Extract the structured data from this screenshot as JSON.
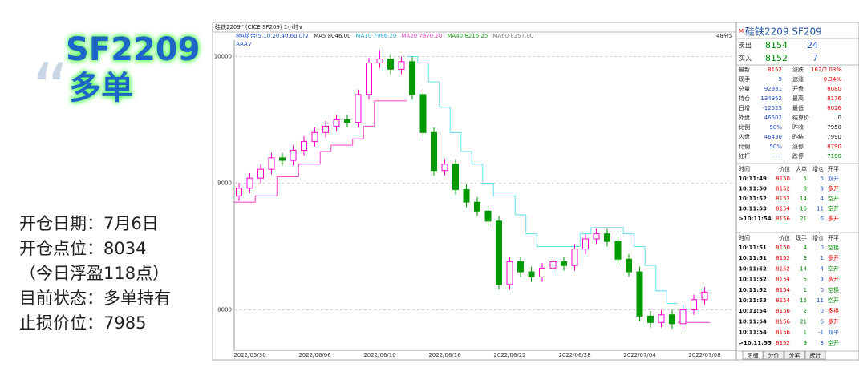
{
  "overlay": {
    "code": "SF2209",
    "direction": "多单",
    "lines": [
      "开仓日期：7月6日",
      "开仓点位：8034",
      "（今日浮盈118点）",
      "目前状态：多单持有",
      "止损价位：7985"
    ]
  },
  "chart_data": {
    "type": "candlestick",
    "title_bar": "硅铁2209ᴹ (CICE SF209)  1小时∨",
    "indicators": [
      {
        "text": "MA组合(5,10,20,40,60,0)∨",
        "color": "#2050c0"
      },
      {
        "text": "MA5 8046.00",
        "color": "#222222"
      },
      {
        "text": "MA10 7986.20",
        "color": "#2aa8c8"
      },
      {
        "text": "MA20 7970.20",
        "color": "#e040c0"
      },
      {
        "text": "MA40 8216.25",
        "color": "#20a020"
      },
      {
        "text": "MA60 8257.00",
        "color": "#808080"
      }
    ],
    "indicator_note": "AAA∨",
    "corner_label": "48分5",
    "categories": [
      null,
      "2022/05/30",
      null,
      null,
      null,
      null,
      null,
      "2022/06/06",
      null,
      null,
      null,
      null,
      null,
      "2022/06/10",
      null,
      null,
      null,
      null,
      null,
      "2022/06/16",
      null,
      null,
      null,
      null,
      null,
      "2022/06/22",
      null,
      null,
      null,
      null,
      null,
      "2022/06/28",
      null,
      null,
      null,
      null,
      null,
      "2022/07/04",
      null,
      null,
      null,
      null,
      null,
      "2022/07/08"
    ],
    "open": [
      8900,
      8960,
      9040,
      9110,
      9200,
      9180,
      9260,
      9330,
      9400,
      9450,
      9500,
      9480,
      9700,
      9950,
      9980,
      9900,
      9960,
      9700,
      9400,
      9100,
      9150,
      8950,
      8850,
      8780,
      8700,
      8200,
      8380,
      8300,
      8260,
      8330,
      8380,
      8350,
      8480,
      8560,
      8600,
      8540,
      8400,
      8300,
      7950,
      7900,
      7960,
      7890,
      8000,
      8080
    ],
    "close": [
      8960,
      9040,
      9110,
      9200,
      9180,
      9260,
      9330,
      9400,
      9450,
      9500,
      9480,
      9700,
      9950,
      9980,
      9900,
      9960,
      9700,
      9400,
      9100,
      9150,
      8950,
      8850,
      8780,
      8700,
      8200,
      8380,
      8300,
      8260,
      8330,
      8380,
      8350,
      8480,
      8560,
      8600,
      8540,
      8400,
      8300,
      7950,
      7900,
      7960,
      7890,
      8000,
      8080,
      8140
    ],
    "high": [
      9000,
      9080,
      9150,
      9240,
      9240,
      9300,
      9370,
      9440,
      9490,
      9540,
      9540,
      9740,
      9990,
      10050,
      10020,
      10000,
      10000,
      9740,
      9440,
      9190,
      9190,
      8990,
      8890,
      8820,
      8740,
      8420,
      8420,
      8340,
      8370,
      8420,
      8420,
      8520,
      8600,
      8640,
      8640,
      8580,
      8440,
      8340,
      7990,
      8000,
      8000,
      8040,
      8120,
      8180
    ],
    "low": [
      8860,
      8920,
      9000,
      9070,
      9140,
      9140,
      9220,
      9290,
      9360,
      9410,
      9440,
      9440,
      9660,
      9910,
      9860,
      9860,
      9660,
      9360,
      9060,
      9060,
      8910,
      8810,
      8740,
      8660,
      8160,
      8160,
      8260,
      8220,
      8220,
      8290,
      8310,
      8310,
      8440,
      8520,
      8500,
      8360,
      8260,
      7910,
      7860,
      7860,
      7850,
      7850,
      7960,
      8040
    ],
    "up_color": "#ff00cc",
    "down_color": "#009900",
    "steps": [
      {
        "color": "#ff40c8",
        "values": [
          8850,
          8850,
          8900,
          8900,
          9050,
          9050,
          9150,
          9150,
          9250,
          9300,
          9300,
          9350,
          9450,
          9650,
          9650,
          9650,
          null,
          null,
          null,
          null,
          null,
          null,
          null,
          null,
          null,
          null,
          null,
          null,
          null,
          null,
          null,
          null,
          null,
          null,
          null,
          null,
          null,
          null,
          null,
          null,
          null,
          7900,
          7900,
          7900
        ]
      },
      {
        "color": "#5fe0f0",
        "values": [
          null,
          null,
          null,
          null,
          null,
          null,
          null,
          null,
          null,
          null,
          null,
          null,
          null,
          null,
          null,
          null,
          10000,
          9950,
          9800,
          9600,
          9400,
          9250,
          9150,
          9000,
          8900,
          8900,
          8750,
          8600,
          8500,
          8500,
          8500,
          8500,
          8600,
          8650,
          8650,
          8650,
          8600,
          8500,
          8350,
          8150,
          8050,
          null,
          null,
          null
        ]
      }
    ],
    "ylim": [
      7680,
      10130
    ],
    "yticks": [
      8000,
      9000,
      10000
    ],
    "grid": true
  },
  "quote_panel": {
    "marker": "M",
    "title": "硅铁2209  SF209",
    "book": [
      [
        "卖出",
        "8154",
        "24"
      ],
      [
        "买入",
        "8152",
        "7"
      ]
    ],
    "stats": [
      [
        "最新",
        "8152",
        "涨跌",
        "162/2.03%"
      ],
      [
        "现手",
        "9",
        "速涨",
        "0.34%"
      ],
      [
        "总量",
        "92931",
        "开盘",
        "8080"
      ],
      [
        "持仓",
        "134952",
        "最高",
        "8176"
      ],
      [
        "日增",
        "-12525",
        "最低",
        "8026"
      ],
      [
        "外盘",
        "46502",
        "结算价",
        "0"
      ],
      [
        "比例",
        "50%",
        "昨收",
        "7950"
      ],
      [
        "内盘",
        "46430",
        "昨结",
        "7990"
      ],
      [
        "比例",
        "50%",
        "涨停",
        "8790"
      ],
      [
        "红杆",
        "-----",
        "跌停",
        "7190"
      ]
    ],
    "big_orders": {
      "header": [
        "时间",
        "价位",
        "大单",
        "增仓",
        "开平"
      ],
      "rows": [
        [
          "10:11:49",
          "8150",
          "5",
          "5",
          "双开"
        ],
        [
          "10:11:50",
          "8152",
          "8",
          "3",
          "多开"
        ],
        [
          "10:11:52",
          "8152",
          "14",
          "4",
          "空开"
        ],
        [
          "10:11:53",
          "8154",
          "16",
          "11",
          "空开"
        ],
        [
          ">10:11:54",
          "8156",
          "21",
          "6",
          "多开"
        ]
      ]
    },
    "ticks": {
      "header": [
        "时间",
        "价位",
        "现手",
        "增仓",
        "开平"
      ],
      "rows": [
        [
          "10:11:51",
          "8150",
          "4",
          "0",
          "空换"
        ],
        [
          "10:11:51",
          "8152",
          "3",
          "1",
          "多开"
        ],
        [
          "10:11:52",
          "8152",
          "14",
          "4",
          "空开"
        ],
        [
          "10:11:52",
          "8154",
          "5",
          "3",
          "多开"
        ],
        [
          "10:11:52",
          "8154",
          "1",
          "0",
          "空换"
        ],
        [
          "10:11:53",
          "8154",
          "16",
          "11",
          "空开"
        ],
        [
          "10:11:54",
          "8156",
          "2",
          "0",
          "多换"
        ],
        [
          "10:11:54",
          "8156",
          "21",
          "6",
          "多开"
        ],
        [
          "10:11:54",
          "8156",
          "1",
          "-1",
          "双平"
        ],
        [
          ">10:11:55",
          "8152",
          "9",
          "8",
          "空开"
        ]
      ]
    },
    "tabs": [
      "明细",
      "分价",
      "分笔",
      "统计"
    ]
  }
}
